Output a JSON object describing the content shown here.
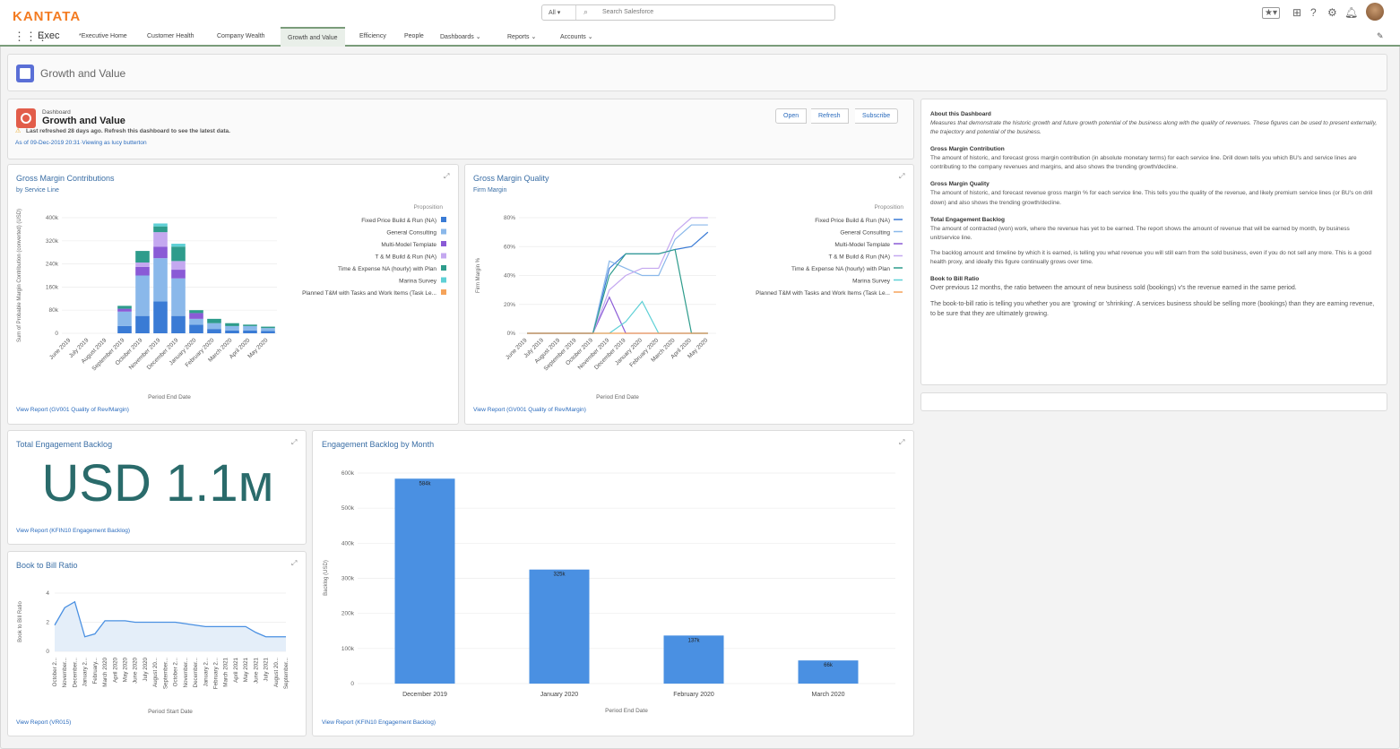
{
  "brand": {
    "logo": "KANTATA"
  },
  "search": {
    "scope": "All",
    "placeholder": "Search Salesforce"
  },
  "nav": {
    "app_name": "Exec",
    "tabs": [
      {
        "label": "*Executive Home"
      },
      {
        "label": "Customer Health"
      },
      {
        "label": "Company Wealth"
      },
      {
        "label": "Growth and Value"
      },
      {
        "label": "Efficiency"
      },
      {
        "label": "People"
      },
      {
        "label": "Dashboards"
      },
      {
        "label": "Reports"
      },
      {
        "label": "Accounts"
      }
    ]
  },
  "page_header": {
    "title": "Growth and Value"
  },
  "dashboard": {
    "type_label": "Dashboard",
    "title": "Growth and Value",
    "warning": "Last refreshed 28 days ago. Refresh this dashboard to see the latest data.",
    "as_of": "As of 09-Dec-2019 20:31·Viewing as lucy butterton",
    "buttons": {
      "open": "Open",
      "refresh": "Refresh",
      "subscribe": "Subscribe"
    }
  },
  "gross_margin_contributions": {
    "title": "Gross Margin Contributions",
    "subtitle": "by Service Line",
    "link": "View Report (GV001 Quality of Rev/Margin)"
  },
  "gross_margin_quality": {
    "title": "Gross Margin Quality",
    "subtitle": "Firm Margin",
    "link": "View Report (GV001 Quality of Rev/Margin)"
  },
  "total_backlog": {
    "title": "Total Engagement Backlog",
    "value": "USD 1.1м",
    "link": "View Report (KFIN10 Engagement Backlog)"
  },
  "book_to_bill": {
    "title": "Book to Bill Ratio",
    "link": "View Report (VR015)"
  },
  "backlog_by_month": {
    "title": "Engagement Backlog by Month",
    "link": "View Report (KFIN10 Engagement Backlog)"
  },
  "about": {
    "heading": "About this Dashboard",
    "intro": "Measures that demonstrate the historic growth and future growth potential of the business along with the quality of revenues. These figures can be used to present externally, the trajectory and potential of the business.",
    "sections": [
      {
        "heading": "Gross Margin Contribution",
        "text": "The amount of historic, and forecast gross margin contribution (in absolute monetary terms) for each service line. Drill down tells you which BU's and service lines are contributing to the company revenues and margins, and also shows the trending growth/decline."
      },
      {
        "heading": "Gross Margin Quality",
        "text": "The amount of historic, and forecast revenue gross margin % for each service line. This tells you the quality of the revenue, and likely premium service lines (or BU's on drill down) and also shows the trending growth/decline."
      },
      {
        "heading": "Total Engagement Backlog",
        "text": "The amount of contracted (won) work, where the revenue has yet to be earned. The report shows the amount of revenue that will be earned by month, by business unit/service line.",
        "text2": "The backlog amount and timeline by which it is earned, is telling you what revenue you will still earn from the sold business, even if you do not sell any more. This is a good health proxy, and ideally this figure continually grows over time."
      },
      {
        "heading": "Book to Bill Ratio",
        "text": "Over previous 12 months, the ratio between the amount of new business sold (bookings) v's the revenue earned in the same period.",
        "text2": "The book-to-bill ratio is telling you whether you are 'growing' or 'shrinking'. A services business should be selling more (bookings) than they are earning revenue, to be sure that they are ultimately growing."
      }
    ]
  },
  "colors": {
    "brand": "#f37b21",
    "link": "#2a6bbd",
    "bar": "#4a90e2",
    "teal_value": "#2a6b6b"
  },
  "chart_data": [
    {
      "type": "bar",
      "stacked": true,
      "categories": [
        "June 2019",
        "July 2019",
        "August 2019",
        "September 2019",
        "October 2019",
        "November 2019",
        "December 2019",
        "January 2020",
        "February 2020",
        "March 2020",
        "April 2020",
        "May 2020"
      ],
      "xlabel": "Period End Date",
      "ylabel": "Sum of Probable Margin Contribution (converted) (USD)",
      "ylim": [
        0,
        400000
      ],
      "yticks": [
        "0",
        "80k",
        "160k",
        "240k",
        "320k",
        "400k"
      ],
      "legend_title": "Proposition",
      "series": [
        {
          "name": "Fixed Price Build & Run (NA)",
          "color": "#3a7bd5",
          "values": [
            0,
            0,
            0,
            25000,
            60000,
            110000,
            60000,
            30000,
            15000,
            10000,
            10000,
            8000
          ]
        },
        {
          "name": "General Consulting",
          "color": "#8ab8ea",
          "values": [
            0,
            0,
            0,
            50000,
            140000,
            150000,
            130000,
            20000,
            20000,
            15000,
            15000,
            10000
          ]
        },
        {
          "name": "Multi-Model Template",
          "color": "#8a5ad6",
          "values": [
            0,
            0,
            0,
            10000,
            30000,
            40000,
            30000,
            20000,
            0,
            0,
            0,
            0
          ]
        },
        {
          "name": "T & M Build & Run (NA)",
          "color": "#c4a8f0",
          "values": [
            0,
            0,
            0,
            0,
            15000,
            50000,
            30000,
            0,
            0,
            0,
            0,
            0
          ]
        },
        {
          "name": "Time & Expense NA (hourly) with Plan",
          "color": "#2e9c8c",
          "values": [
            0,
            0,
            0,
            10000,
            40000,
            20000,
            50000,
            10000,
            15000,
            10000,
            5000,
            5000
          ]
        },
        {
          "name": "Marina Survey",
          "color": "#5ed0d6",
          "values": [
            0,
            0,
            0,
            0,
            0,
            10000,
            10000,
            0,
            0,
            0,
            0,
            0
          ]
        },
        {
          "name": "Planned T&M with Tasks and Work Items (Task Le...",
          "color": "#f5a35a",
          "values": [
            0,
            0,
            0,
            0,
            0,
            0,
            0,
            0,
            0,
            0,
            0,
            0
          ]
        }
      ]
    },
    {
      "type": "line",
      "categories": [
        "June 2019",
        "July 2019",
        "August 2019",
        "September 2019",
        "October 2019",
        "November 2019",
        "December 2019",
        "January 2020",
        "February 2020",
        "March 2020",
        "April 2020",
        "May 2020"
      ],
      "xlabel": "Period End Date",
      "ylabel": "Firm Margin %",
      "ylim": [
        0,
        80
      ],
      "yticks": [
        "0%",
        "20%",
        "40%",
        "60%",
        "80%"
      ],
      "legend_title": "Proposition",
      "series": [
        {
          "name": "Fixed Price Build & Run (NA)",
          "color": "#3a7bd5",
          "values": [
            0,
            0,
            0,
            0,
            0,
            45,
            55,
            55,
            55,
            58,
            60,
            70
          ]
        },
        {
          "name": "General Consulting",
          "color": "#8ab8ea",
          "values": [
            0,
            0,
            0,
            0,
            0,
            50,
            45,
            40,
            40,
            65,
            75,
            75
          ]
        },
        {
          "name": "Multi-Model Template",
          "color": "#8a5ad6",
          "values": [
            0,
            0,
            0,
            0,
            0,
            25,
            0,
            0,
            0,
            0,
            0,
            0
          ]
        },
        {
          "name": "T & M Build & Run (NA)",
          "color": "#c4a8f0",
          "values": [
            0,
            0,
            0,
            0,
            0,
            30,
            40,
            45,
            45,
            70,
            80,
            80
          ]
        },
        {
          "name": "Time & Expense NA (hourly) with Plan",
          "color": "#2e9c8c",
          "values": [
            0,
            0,
            0,
            0,
            0,
            40,
            55,
            55,
            55,
            58,
            0,
            0
          ]
        },
        {
          "name": "Marina Survey",
          "color": "#5ed0d6",
          "values": [
            0,
            0,
            0,
            0,
            0,
            0,
            8,
            22,
            0,
            0,
            0,
            0
          ]
        },
        {
          "name": "Planned T&M with Tasks and Work Items (Task Le...",
          "color": "#f5a35a",
          "values": [
            0,
            0,
            0,
            0,
            0,
            0,
            0,
            0,
            0,
            0,
            0,
            0
          ]
        }
      ]
    },
    {
      "type": "area",
      "categories": [
        "October 2...",
        "November...",
        "December...",
        "January 2...",
        "February...",
        "March 2020",
        "April 2020",
        "May 2020",
        "June 2020",
        "July 2020",
        "August 20...",
        "September...",
        "October 2...",
        "November...",
        "December...",
        "January 2...",
        "February 2...",
        "March 2021",
        "April 2021",
        "May 2021",
        "June 2021",
        "July 2021",
        "August 20...",
        "September..."
      ],
      "xlabel": "Period Start Date",
      "ylabel": "Book to Bill Ratio",
      "ylim": [
        0,
        4
      ],
      "yticks": [
        "0",
        "2",
        "4"
      ],
      "values": [
        1.8,
        3.0,
        3.4,
        1.0,
        1.2,
        2.1,
        2.1,
        2.1,
        2.0,
        2.0,
        2.0,
        2.0,
        2.0,
        1.9,
        1.8,
        1.7,
        1.7,
        1.7,
        1.7,
        1.7,
        1.3,
        1.0,
        1.0,
        1.0
      ]
    },
    {
      "type": "bar",
      "categories": [
        "December 2019",
        "January 2020",
        "February 2020",
        "March 2020"
      ],
      "values": [
        584,
        325,
        137,
        66
      ],
      "data_labels": [
        "584k",
        "325k",
        "137k",
        "66k"
      ],
      "xlabel": "Period End Date",
      "ylabel": "Backlog (USD)",
      "ylim": [
        0,
        600
      ],
      "yticks": [
        "0",
        "100k",
        "200k",
        "300k",
        "400k",
        "500k",
        "600k"
      ]
    }
  ]
}
